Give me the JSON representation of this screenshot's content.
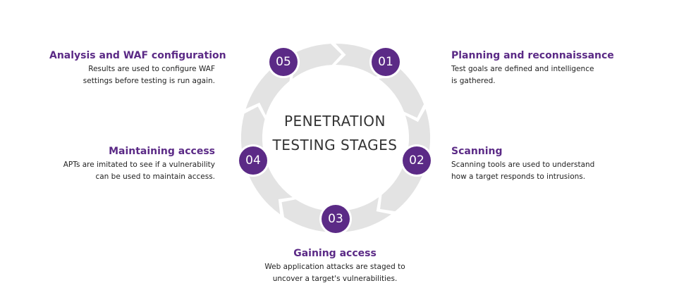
{
  "center": {
    "line1": "PENETRATION",
    "line2": "TESTING STAGES"
  },
  "stages": [
    {
      "number": "01",
      "title": "Planning and reconnaissance",
      "desc_line1": "Test goals are defined and intelligence",
      "desc_line2": "is gathered."
    },
    {
      "number": "02",
      "title": "Scanning",
      "desc_line1": "Scanning tools are used to understand",
      "desc_line2": "how a target responds to intrusions."
    },
    {
      "number": "03",
      "title": "Gaining access",
      "desc_line1": "Web application attacks are staged to",
      "desc_line2": "uncover a target's vulnerabilities."
    },
    {
      "number": "04",
      "title": "Maintaining access",
      "desc_line1": "APTs are imitated to see if a vulnerability",
      "desc_line2": "can be used to maintain access."
    },
    {
      "number": "05",
      "title": "Analysis and WAF configuration",
      "desc_line1": "Results are used to configure WAF",
      "desc_line2": "settings before testing is run again."
    }
  ],
  "colors": {
    "accent": "#5b2a86",
    "ring": "#e3e3e3"
  }
}
